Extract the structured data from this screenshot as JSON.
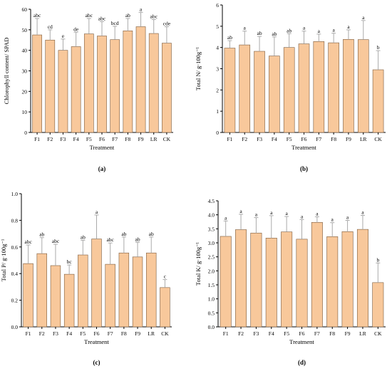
{
  "colors": {
    "bar_fill": "#f8c89b",
    "bar_stroke": "#7a5a3c",
    "axis": "#000000",
    "error_bar": "#aaaaaa"
  },
  "chart_data": [
    {
      "id": "a",
      "type": "bar",
      "panel_label": "(a)",
      "xlabel": "Treatment",
      "ylabel": "Chlorophyll content/ SPAD",
      "categories": [
        "F1",
        "F2",
        "F3",
        "F4",
        "F5",
        "F6",
        "F7",
        "F8",
        "F9",
        "LR",
        "CK"
      ],
      "values": [
        47.5,
        45.0,
        40.0,
        41.8,
        48.0,
        47.0,
        45.2,
        49.5,
        51.5,
        48.2,
        43.5
      ],
      "errors": [
        8.0,
        5.0,
        5.5,
        7.0,
        7.5,
        7.0,
        6.5,
        6.0,
        7.0,
        6.8,
        8.0
      ],
      "letters": [
        "abc",
        "cd",
        "e",
        "de",
        "abc",
        "abc",
        "bcd",
        "ab",
        "a",
        "abc",
        "cde"
      ],
      "ylim": [
        0,
        60
      ],
      "yticks": [
        "0",
        "10",
        "20",
        "30",
        "40",
        "50",
        "60"
      ]
    },
    {
      "id": "b",
      "type": "bar",
      "panel_label": "(b)",
      "xlabel": "Treatment",
      "ylabel": "Total N/ g·100g⁻¹",
      "categories": [
        "F1",
        "F2",
        "F3",
        "F4",
        "F5",
        "F6",
        "F7",
        "F8",
        "F9",
        "LR",
        "CK"
      ],
      "values": [
        3.97,
        4.12,
        3.82,
        3.6,
        4.0,
        4.17,
        4.28,
        4.22,
        4.38,
        4.37,
        2.95
      ],
      "errors": [
        0.35,
        0.65,
        0.7,
        0.9,
        0.65,
        0.6,
        0.35,
        0.45,
        0.45,
        0.9,
        0.9
      ],
      "letters": [
        "ab",
        "a",
        "ab",
        "ab",
        "ab",
        "a",
        "a",
        "a",
        "a",
        "a",
        "b"
      ],
      "ylim": [
        0,
        6
      ],
      "yticks": [
        "0",
        "1",
        "2",
        "3",
        "4",
        "5",
        "6"
      ]
    },
    {
      "id": "c",
      "type": "bar",
      "panel_label": "(c)",
      "xlabel": "Treatment",
      "ylabel": "Total P/ g·100g⁻¹",
      "categories": [
        "F1",
        "F2",
        "F3",
        "F4",
        "F5",
        "F6",
        "F7",
        "F8",
        "F9",
        "LR",
        "CK"
      ],
      "values": [
        0.475,
        0.55,
        0.46,
        0.395,
        0.54,
        0.66,
        0.47,
        0.555,
        0.525,
        0.555,
        0.295
      ],
      "errors": [
        0.14,
        0.12,
        0.16,
        0.07,
        0.11,
        0.18,
        0.16,
        0.12,
        0.11,
        0.12,
        0.06
      ],
      "letters": [
        "abc",
        "ab",
        "abc",
        "bc",
        "ab",
        "a",
        "abc",
        "ab",
        "ab",
        "ab",
        "c"
      ],
      "ylim": [
        0,
        1.0
      ],
      "yticks": [
        "0.0",
        "0.2",
        "0.4",
        "0.6",
        "0.8",
        "1.0"
      ]
    },
    {
      "id": "d",
      "type": "bar",
      "panel_label": "(d)",
      "xlabel": "Treatment",
      "ylabel": "Total K/ g·100g⁻¹",
      "categories": [
        "F1",
        "F2",
        "F3",
        "F4",
        "F5",
        "F6",
        "F7",
        "F8",
        "F9",
        "LR",
        "CK"
      ],
      "values": [
        3.23,
        3.47,
        3.35,
        3.17,
        3.39,
        3.13,
        3.73,
        3.22,
        3.4,
        3.48,
        1.58
      ],
      "errors": [
        0.55,
        0.55,
        0.55,
        0.8,
        0.55,
        0.7,
        0.2,
        0.5,
        0.4,
        0.5,
        0.7
      ],
      "letters": [
        "a",
        "a",
        "a",
        "a",
        "a",
        "a",
        "a",
        "a",
        "a",
        "a",
        "b"
      ],
      "ylim": [
        0,
        4.5
      ],
      "yticks": [
        "0.0",
        "0.5",
        "1.0",
        "1.5",
        "2.0",
        "2.5",
        "3.0",
        "3.5",
        "4.0",
        "4.5"
      ]
    }
  ]
}
